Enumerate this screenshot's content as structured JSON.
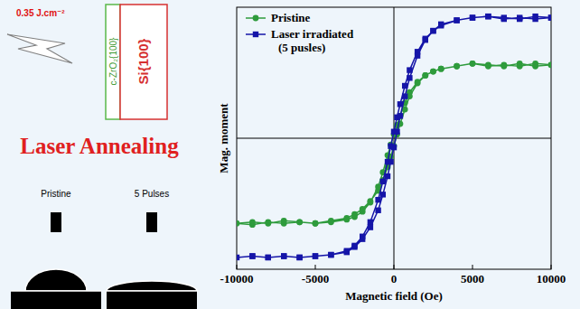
{
  "chart_data": {
    "type": "line",
    "x_label": "Magnetic field (Oe)",
    "y_label": "Mag. moment",
    "xlim": [
      -10000,
      10000
    ],
    "ylim": [
      -1,
      1
    ],
    "xticks": [
      -10000,
      -5000,
      0,
      5000,
      10000
    ],
    "tick_labels": "x",
    "grid": false,
    "legend": "upper left",
    "series": [
      {
        "name": "Pristine",
        "color": "#2e9b3c",
        "marker": "circle",
        "line_style": "solid",
        "x": [
          10000,
          9000,
          8000,
          7000,
          6000,
          5000,
          4000,
          3000,
          2500,
          2000,
          1500,
          1000,
          700,
          400,
          200,
          0,
          -200,
          -400,
          -700,
          -1000,
          -1500,
          -2000,
          -2500,
          -3000,
          -4000,
          -5000,
          -6000,
          -7000,
          -8000,
          -9000,
          -10000,
          -9000,
          -8000,
          -7000,
          -6000,
          -5000,
          -4000,
          -3000,
          -2500,
          -2000,
          -1500,
          -1000,
          -700,
          -400,
          -200,
          0,
          200,
          400,
          700,
          1000,
          1500,
          2000,
          2500,
          3000,
          4000,
          5000,
          6000,
          7000,
          8000,
          9000,
          10000
        ],
        "values": [
          0.56,
          0.55,
          0.57,
          0.55,
          0.56,
          0.57,
          0.55,
          0.53,
          0.51,
          0.48,
          0.43,
          0.35,
          0.27,
          0.17,
          0.1,
          0.03,
          -0.05,
          -0.13,
          -0.26,
          -0.37,
          -0.49,
          -0.56,
          -0.6,
          -0.62,
          -0.64,
          -0.65,
          -0.64,
          -0.65,
          -0.64,
          -0.66,
          -0.65,
          -0.64,
          -0.65,
          -0.63,
          -0.64,
          -0.65,
          -0.63,
          -0.61,
          -0.58,
          -0.54,
          -0.48,
          -0.4,
          -0.32,
          -0.22,
          -0.14,
          -0.06,
          0.03,
          0.11,
          0.22,
          0.32,
          0.42,
          0.48,
          0.51,
          0.53,
          0.55,
          0.57,
          0.55,
          0.56,
          0.55,
          0.57,
          0.56
        ]
      },
      {
        "name": "Laser irradiated (5 pusles)",
        "color": "#1515a8",
        "marker": "square",
        "line_style": "solid",
        "x": [
          10000,
          9000,
          8000,
          7000,
          6000,
          5000,
          4000,
          3000,
          2500,
          2000,
          1500,
          1000,
          700,
          400,
          200,
          0,
          -200,
          -400,
          -700,
          -1000,
          -1500,
          -2000,
          -2500,
          -3000,
          -4000,
          -5000,
          -6000,
          -7000,
          -8000,
          -9000,
          -10000,
          -9000,
          -8000,
          -7000,
          -6000,
          -5000,
          -4000,
          -3000,
          -2500,
          -2000,
          -1500,
          -1000,
          -700,
          -400,
          -200,
          0,
          200,
          400,
          700,
          1000,
          1500,
          2000,
          2500,
          3000,
          4000,
          5000,
          6000,
          7000,
          8000,
          9000,
          10000
        ],
        "values": [
          0.92,
          0.93,
          0.91,
          0.92,
          0.93,
          0.92,
          0.9,
          0.86,
          0.82,
          0.76,
          0.66,
          0.52,
          0.4,
          0.26,
          0.16,
          0.05,
          -0.06,
          -0.18,
          -0.33,
          -0.47,
          -0.64,
          -0.75,
          -0.82,
          -0.86,
          -0.89,
          -0.9,
          -0.91,
          -0.9,
          -0.91,
          -0.9,
          -0.91,
          -0.9,
          -0.91,
          -0.9,
          -0.91,
          -0.9,
          -0.89,
          -0.87,
          -0.83,
          -0.77,
          -0.68,
          -0.55,
          -0.43,
          -0.29,
          -0.18,
          -0.07,
          0.05,
          0.17,
          0.32,
          0.46,
          0.63,
          0.75,
          0.82,
          0.87,
          0.9,
          0.92,
          0.93,
          0.91,
          0.92,
          0.91,
          0.92
        ]
      }
    ]
  },
  "diagram": {
    "fluence": "0.35 J.cm⁻²",
    "layers": [
      "c-ZrO₂{100}",
      "Si{100}"
    ],
    "process": "Laser Annealing",
    "contact_angle": [
      "Pristine",
      "5 Pulses"
    ]
  }
}
